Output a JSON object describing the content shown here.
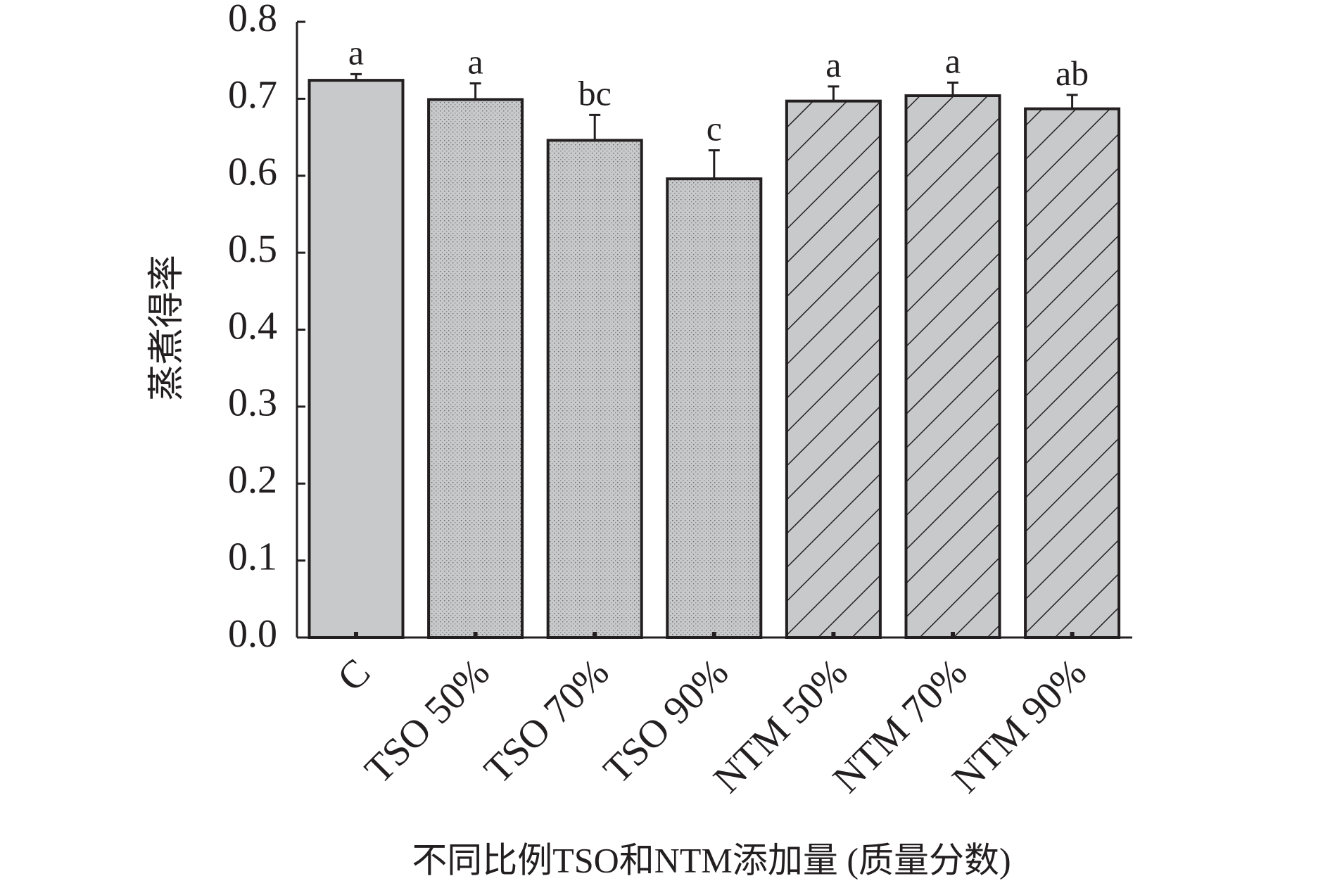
{
  "chart_data": {
    "type": "bar",
    "y_label": "蒸煮得率",
    "x_label": "不同比例TSO和NTM添加量 (质量分数)",
    "categories": [
      "C",
      "TSO 50%",
      "TSO 70%",
      "TSO 90%",
      "NTM 50%",
      "NTM 70%",
      "NTM 90%"
    ],
    "values": [
      0.724,
      0.699,
      0.646,
      0.596,
      0.697,
      0.704,
      0.687
    ],
    "errors": [
      0.008,
      0.021,
      0.033,
      0.037,
      0.019,
      0.017,
      0.018
    ],
    "annotations": [
      "a",
      "a",
      "bc",
      "c",
      "a",
      "a",
      "ab"
    ],
    "color": "#c8c9cb",
    "patterns": [
      "solid",
      "dots",
      "dots",
      "dots",
      "hatch",
      "hatch",
      "hatch"
    ],
    "ylim": [
      0,
      0.8
    ],
    "yticks": [
      {
        "value": 0,
        "label": "0.0"
      },
      0.1,
      0.2,
      0.3,
      0.4,
      0.5,
      0.6,
      0.7,
      0.8
    ]
  }
}
